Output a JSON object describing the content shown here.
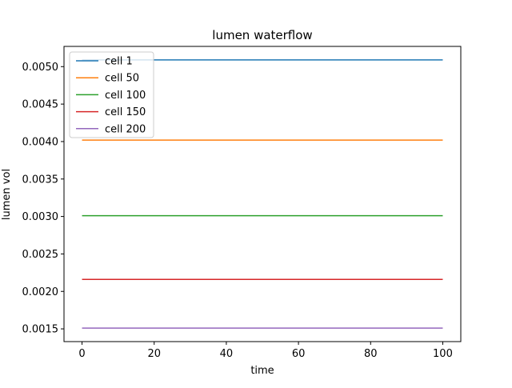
{
  "chart_data": {
    "type": "line",
    "title": "lumen waterflow",
    "xlabel": "time",
    "ylabel": "lumen vol",
    "xlim": [
      -5,
      105
    ],
    "ylim": [
      0.00133,
      0.00527
    ],
    "xticks": [
      0,
      20,
      40,
      60,
      80,
      100
    ],
    "yticks": [
      0.0015,
      0.002,
      0.0025,
      0.003,
      0.0035,
      0.004,
      0.0045,
      0.005
    ],
    "ytick_labels": [
      "0.0015",
      "0.0020",
      "0.0025",
      "0.0030",
      "0.0035",
      "0.0040",
      "0.0045",
      "0.0050"
    ],
    "x": [
      0,
      100
    ],
    "grid": false,
    "legend_position": "upper-left",
    "series": [
      {
        "name": "cell 1",
        "color": "#1f77b4",
        "values": [
          0.00509,
          0.00509
        ]
      },
      {
        "name": "cell 50",
        "color": "#ff7f0e",
        "values": [
          0.00402,
          0.00402
        ]
      },
      {
        "name": "cell 100",
        "color": "#2ca02c",
        "values": [
          0.00301,
          0.00301
        ]
      },
      {
        "name": "cell 150",
        "color": "#d62728",
        "values": [
          0.00216,
          0.00216
        ]
      },
      {
        "name": "cell 200",
        "color": "#9467bd",
        "values": [
          0.00151,
          0.00151
        ]
      }
    ]
  }
}
